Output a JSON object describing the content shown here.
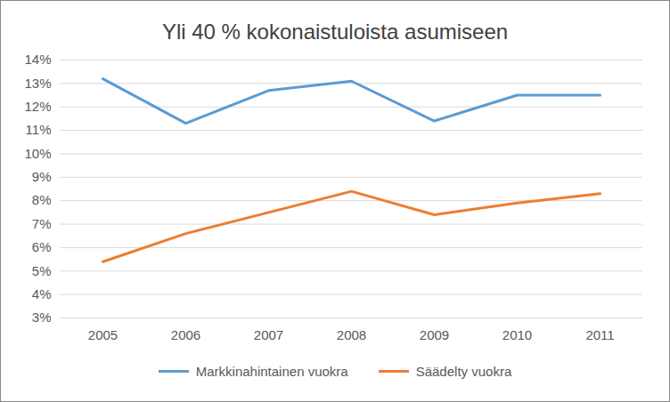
{
  "chart_data": {
    "type": "line",
    "title": "Yli 40 % kokonaistuloista asumiseen",
    "categories": [
      "2005",
      "2006",
      "2007",
      "2008",
      "2009",
      "2010",
      "2011"
    ],
    "series": [
      {
        "name": "Markkinahintainen vuokra",
        "color": "#5b9bd5",
        "values": [
          13.2,
          11.3,
          12.7,
          13.1,
          11.4,
          12.5,
          12.5
        ]
      },
      {
        "name": "Säädelty vuokra",
        "color": "#ed7d31",
        "values": [
          5.4,
          6.6,
          7.5,
          8.4,
          7.4,
          7.9,
          8.3
        ]
      }
    ],
    "ylim": [
      3,
      14
    ],
    "yticks": [
      {
        "value": 3,
        "label": "3%"
      },
      {
        "value": 4,
        "label": "4%"
      },
      {
        "value": 5,
        "label": "5%"
      },
      {
        "value": 6,
        "label": "6%"
      },
      {
        "value": 7,
        "label": "7%"
      },
      {
        "value": 8,
        "label": "8%"
      },
      {
        "value": 9,
        "label": "9%"
      },
      {
        "value": 10,
        "label": "10%"
      },
      {
        "value": 11,
        "label": "11%"
      },
      {
        "value": 12,
        "label": "12%"
      },
      {
        "value": 13,
        "label": "13%"
      },
      {
        "value": 14,
        "label": "14%"
      }
    ],
    "grid": true,
    "legend": "bottom"
  }
}
